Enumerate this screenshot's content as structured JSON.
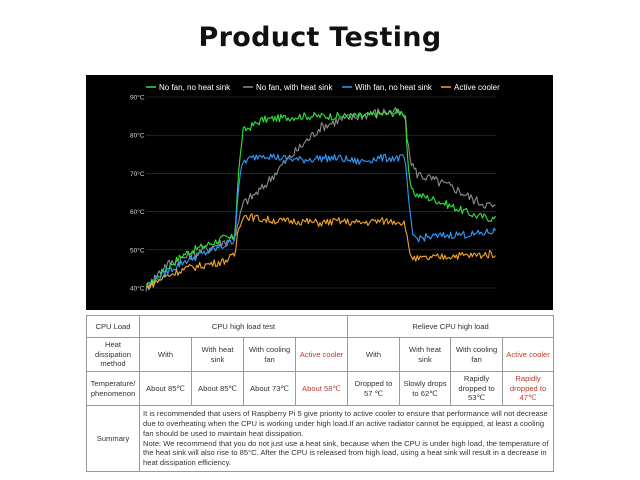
{
  "page": {
    "title": "Product Testing"
  },
  "chart_data": {
    "type": "line",
    "y_ticks": [
      "90°C",
      "80°C",
      "70°C",
      "60°C",
      "50°C",
      "40°C"
    ],
    "ylim": [
      40,
      90
    ],
    "x": [
      0,
      20,
      40,
      60,
      80,
      88,
      92,
      95,
      100,
      120,
      140,
      160,
      180,
      200,
      220,
      240,
      260,
      268,
      272,
      276,
      280,
      300,
      320,
      340,
      362
    ],
    "grid": "horizontal lines at each 10°C",
    "legend_position": "top",
    "series": [
      {
        "name": "No fan, no heat sink",
        "color": "#2ee63c",
        "values": [
          40,
          45,
          49,
          51,
          53,
          53,
          54,
          68,
          81,
          84,
          84.5,
          85,
          85,
          85,
          85,
          85.5,
          86,
          86,
          68,
          65,
          64.5,
          63,
          61,
          59,
          58
        ]
      },
      {
        "name": "No fan, with heat sink",
        "color": "#8c8c8c",
        "values": [
          40,
          46,
          48,
          50,
          52,
          53,
          54,
          56,
          62,
          66,
          72,
          77,
          82,
          84,
          85,
          86,
          86,
          85,
          75,
          72,
          70,
          68,
          66,
          63,
          61
        ]
      },
      {
        "name": "With fan, no heat sink",
        "color": "#2f9bff",
        "values": [
          40,
          44,
          47,
          49,
          51,
          52,
          53,
          65,
          73,
          75,
          74,
          73.5,
          74,
          74,
          73,
          74,
          74,
          74,
          61,
          54,
          53,
          53.5,
          54,
          54,
          55
        ]
      },
      {
        "name": "Active cooler",
        "color": "#f5a623",
        "values": [
          40,
          43,
          45,
          46,
          47,
          48,
          48.5,
          55,
          59,
          58,
          57.5,
          57.5,
          57,
          57.5,
          57,
          57.5,
          57.5,
          57,
          49.5,
          48,
          47.5,
          48,
          48.5,
          48.5,
          49
        ]
      }
    ]
  },
  "table": {
    "col_cpu_load": "CPU Load",
    "group_high": "CPU high load test",
    "group_relieve": "Relieve CPU high load",
    "row_method": "Heat dissipation method",
    "methods": [
      "With",
      "With heat sink",
      "With cooling fan",
      "Active cooler",
      "With",
      "With heat sink",
      "With cooling fan",
      "Active cooler"
    ],
    "row_temp": "Temperature/ phenomenon",
    "temps": [
      "About 85℃",
      "About 85℃",
      "About 73℃",
      "About 58℃",
      "Dropped to  57 ℃",
      "Slowly  drops  to  62℃",
      "Rapidly dropped to 53℃",
      "Rapidly dropped to 47℃"
    ],
    "row_summary": "Summary",
    "summary_lines": [
      "It is recommended that users of Raspberry Pi 5 give priority to active cooler to ensure that performance will not decrease due to overheating when the CPU is working under high load.If an active radiator cannot be equipped, at least a cooling fan should be used to maintain heat dissipation.",
      "Note: We recommend that you do not just use a heat sink, because when the CPU is under high load, the temperature of the heat sink will also rise to 85°C. After the CPU is released from high load, using a heat sink will result in a decrease in heat dissipation efficiency."
    ]
  }
}
